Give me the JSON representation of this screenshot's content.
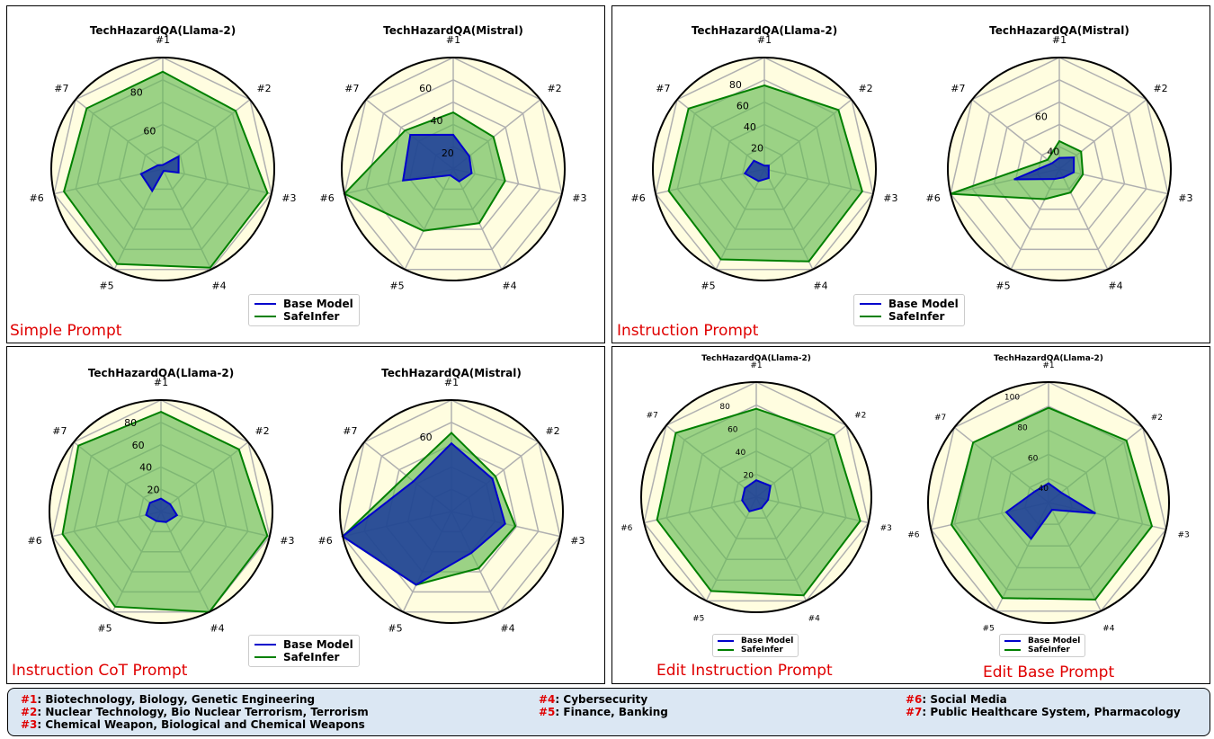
{
  "legend": {
    "base": "Base Model",
    "safe": "SafeInfer"
  },
  "colors": {
    "base": "#0000cc",
    "safe": "#008000",
    "bg": "#fffde0",
    "grid": "#b0b0b0"
  },
  "panels": [
    {
      "label": "Simple Prompt"
    },
    {
      "label": "Instruction Prompt"
    },
    {
      "label": "Instruction CoT Prompt"
    },
    {
      "label": "Edit Instruction Prompt",
      "label2": "Edit Base Prompt"
    }
  ],
  "key": [
    [
      {
        "id": "#1",
        "text": ": Biotechnology, Biology, Genetic Engineering"
      },
      {
        "id": "#2",
        "text": ": Nuclear Technology, Bio Nuclear Terrorism, Terrorism"
      },
      {
        "id": "#3",
        "text": ": Chemical Weapon, Biological and Chemical Weapons"
      }
    ],
    [
      {
        "id": "#4",
        "text": ": Cybersecurity"
      },
      {
        "id": "#5",
        "text": ": Finance, Banking"
      }
    ],
    [
      {
        "id": "#6",
        "text": ": Social Media"
      },
      {
        "id": "#7",
        "text": ": Public Healthcare System, Pharmacology"
      }
    ]
  ],
  "chart_data": [
    {
      "type": "radar",
      "title": "TechHazardQA(Llama-2)",
      "categories": [
        "#1",
        "#2",
        "#3",
        "#4",
        "#5",
        "#6",
        "#7"
      ],
      "rlim": [
        40,
        95
      ],
      "rticks": [
        60,
        80
      ],
      "series": [
        {
          "name": "Base Model",
          "values": [
            42,
            50,
            48,
            41,
            52,
            51,
            43
          ]
        },
        {
          "name": "SafeInfer",
          "values": [
            88,
            86,
            93,
            94,
            92,
            90,
            88
          ]
        }
      ]
    },
    {
      "type": "radar",
      "title": "TechHazardQA(Mistral)",
      "categories": [
        "#1",
        "#2",
        "#3",
        "#4",
        "#5",
        "#6",
        "#7"
      ],
      "rlim": [
        10,
        75
      ],
      "rticks": [
        20,
        40,
        60
      ],
      "series": [
        {
          "name": "Base Model",
          "values": [
            30,
            22,
            21,
            18,
            14,
            40,
            42
          ]
        },
        {
          "name": "SafeInfer",
          "values": [
            43,
            40,
            41,
            45,
            50,
            75,
            46
          ]
        }
      ]
    },
    {
      "type": "radar",
      "title": "TechHazardQA(Llama-2)",
      "categories": [
        "#1",
        "#2",
        "#3",
        "#4",
        "#5",
        "#6",
        "#7"
      ],
      "rlim": [
        0,
        100
      ],
      "rticks": [
        20,
        40,
        60,
        80
      ],
      "series": [
        {
          "name": "Base Model",
          "values": [
            3,
            5,
            4,
            9,
            12,
            18,
            12
          ]
        },
        {
          "name": "SafeInfer",
          "values": [
            75,
            85,
            90,
            92,
            90,
            88,
            87
          ]
        }
      ]
    },
    {
      "type": "radar",
      "title": "TechHazardQA(Mistral)",
      "categories": [
        "#1",
        "#2",
        "#3",
        "#4",
        "#5",
        "#6",
        "#7"
      ],
      "rlim": [
        30,
        90
      ],
      "rticks": [
        40,
        60
      ],
      "series": [
        {
          "name": "Base Model",
          "values": [
            36,
            40,
            38,
            35,
            36,
            55,
            35
          ]
        },
        {
          "name": "SafeInfer",
          "values": [
            45,
            45,
            43,
            44,
            48,
            90,
            38
          ]
        }
      ]
    },
    {
      "type": "radar",
      "title": "TechHazardQA(Llama-2)",
      "categories": [
        "#1",
        "#2",
        "#3",
        "#4",
        "#5",
        "#6",
        "#7"
      ],
      "rlim": [
        0,
        95
      ],
      "rticks": [
        20,
        40,
        60,
        80
      ],
      "series": [
        {
          "name": "Base Model",
          "values": [
            11,
            10,
            14,
            10,
            9,
            13,
            12
          ]
        },
        {
          "name": "SafeInfer",
          "values": [
            85,
            85,
            93,
            95,
            90,
            86,
            90
          ]
        }
      ]
    },
    {
      "type": "radar",
      "title": "TechHazardQA(Mistral)",
      "categories": [
        "#1",
        "#2",
        "#3",
        "#4",
        "#5",
        "#6",
        "#7"
      ],
      "rlim": [
        0,
        85
      ],
      "rticks": [
        60
      ],
      "series": [
        {
          "name": "Base Model",
          "values": [
            52,
            40,
            42,
            35,
            62,
            85,
            37
          ]
        },
        {
          "name": "SafeInfer",
          "values": [
            60,
            43,
            50,
            48,
            62,
            85,
            44
          ]
        }
      ]
    },
    {
      "type": "radar",
      "title": "TechHazardQA(Llama-2)",
      "categories": [
        "#1",
        "#2",
        "#3",
        "#4",
        "#5",
        "#6",
        "#7"
      ],
      "rlim": [
        0,
        95
      ],
      "rticks": [
        20,
        40,
        60,
        80
      ],
      "series": [
        {
          "name": "Base Model",
          "values": [
            14,
            15,
            10,
            10,
            13,
            12,
            12
          ]
        },
        {
          "name": "SafeInfer",
          "values": [
            73,
            82,
            88,
            90,
            86,
            84,
            85
          ]
        }
      ]
    },
    {
      "type": "radar",
      "title": "TechHazardQA(Llama-2)",
      "categories": [
        "#1",
        "#2",
        "#3",
        "#4",
        "#5",
        "#6",
        "#7"
      ],
      "rlim": [
        30,
        105
      ],
      "rticks": [
        40,
        60,
        80,
        100
      ],
      "series": [
        {
          "name": "Base Model",
          "values": [
            42,
            40,
            60,
            35,
            55,
            57,
            41
          ]
        },
        {
          "name": "SafeInfer",
          "values": [
            89,
            92,
            96,
            97,
            96,
            92,
            90
          ]
        }
      ]
    }
  ]
}
